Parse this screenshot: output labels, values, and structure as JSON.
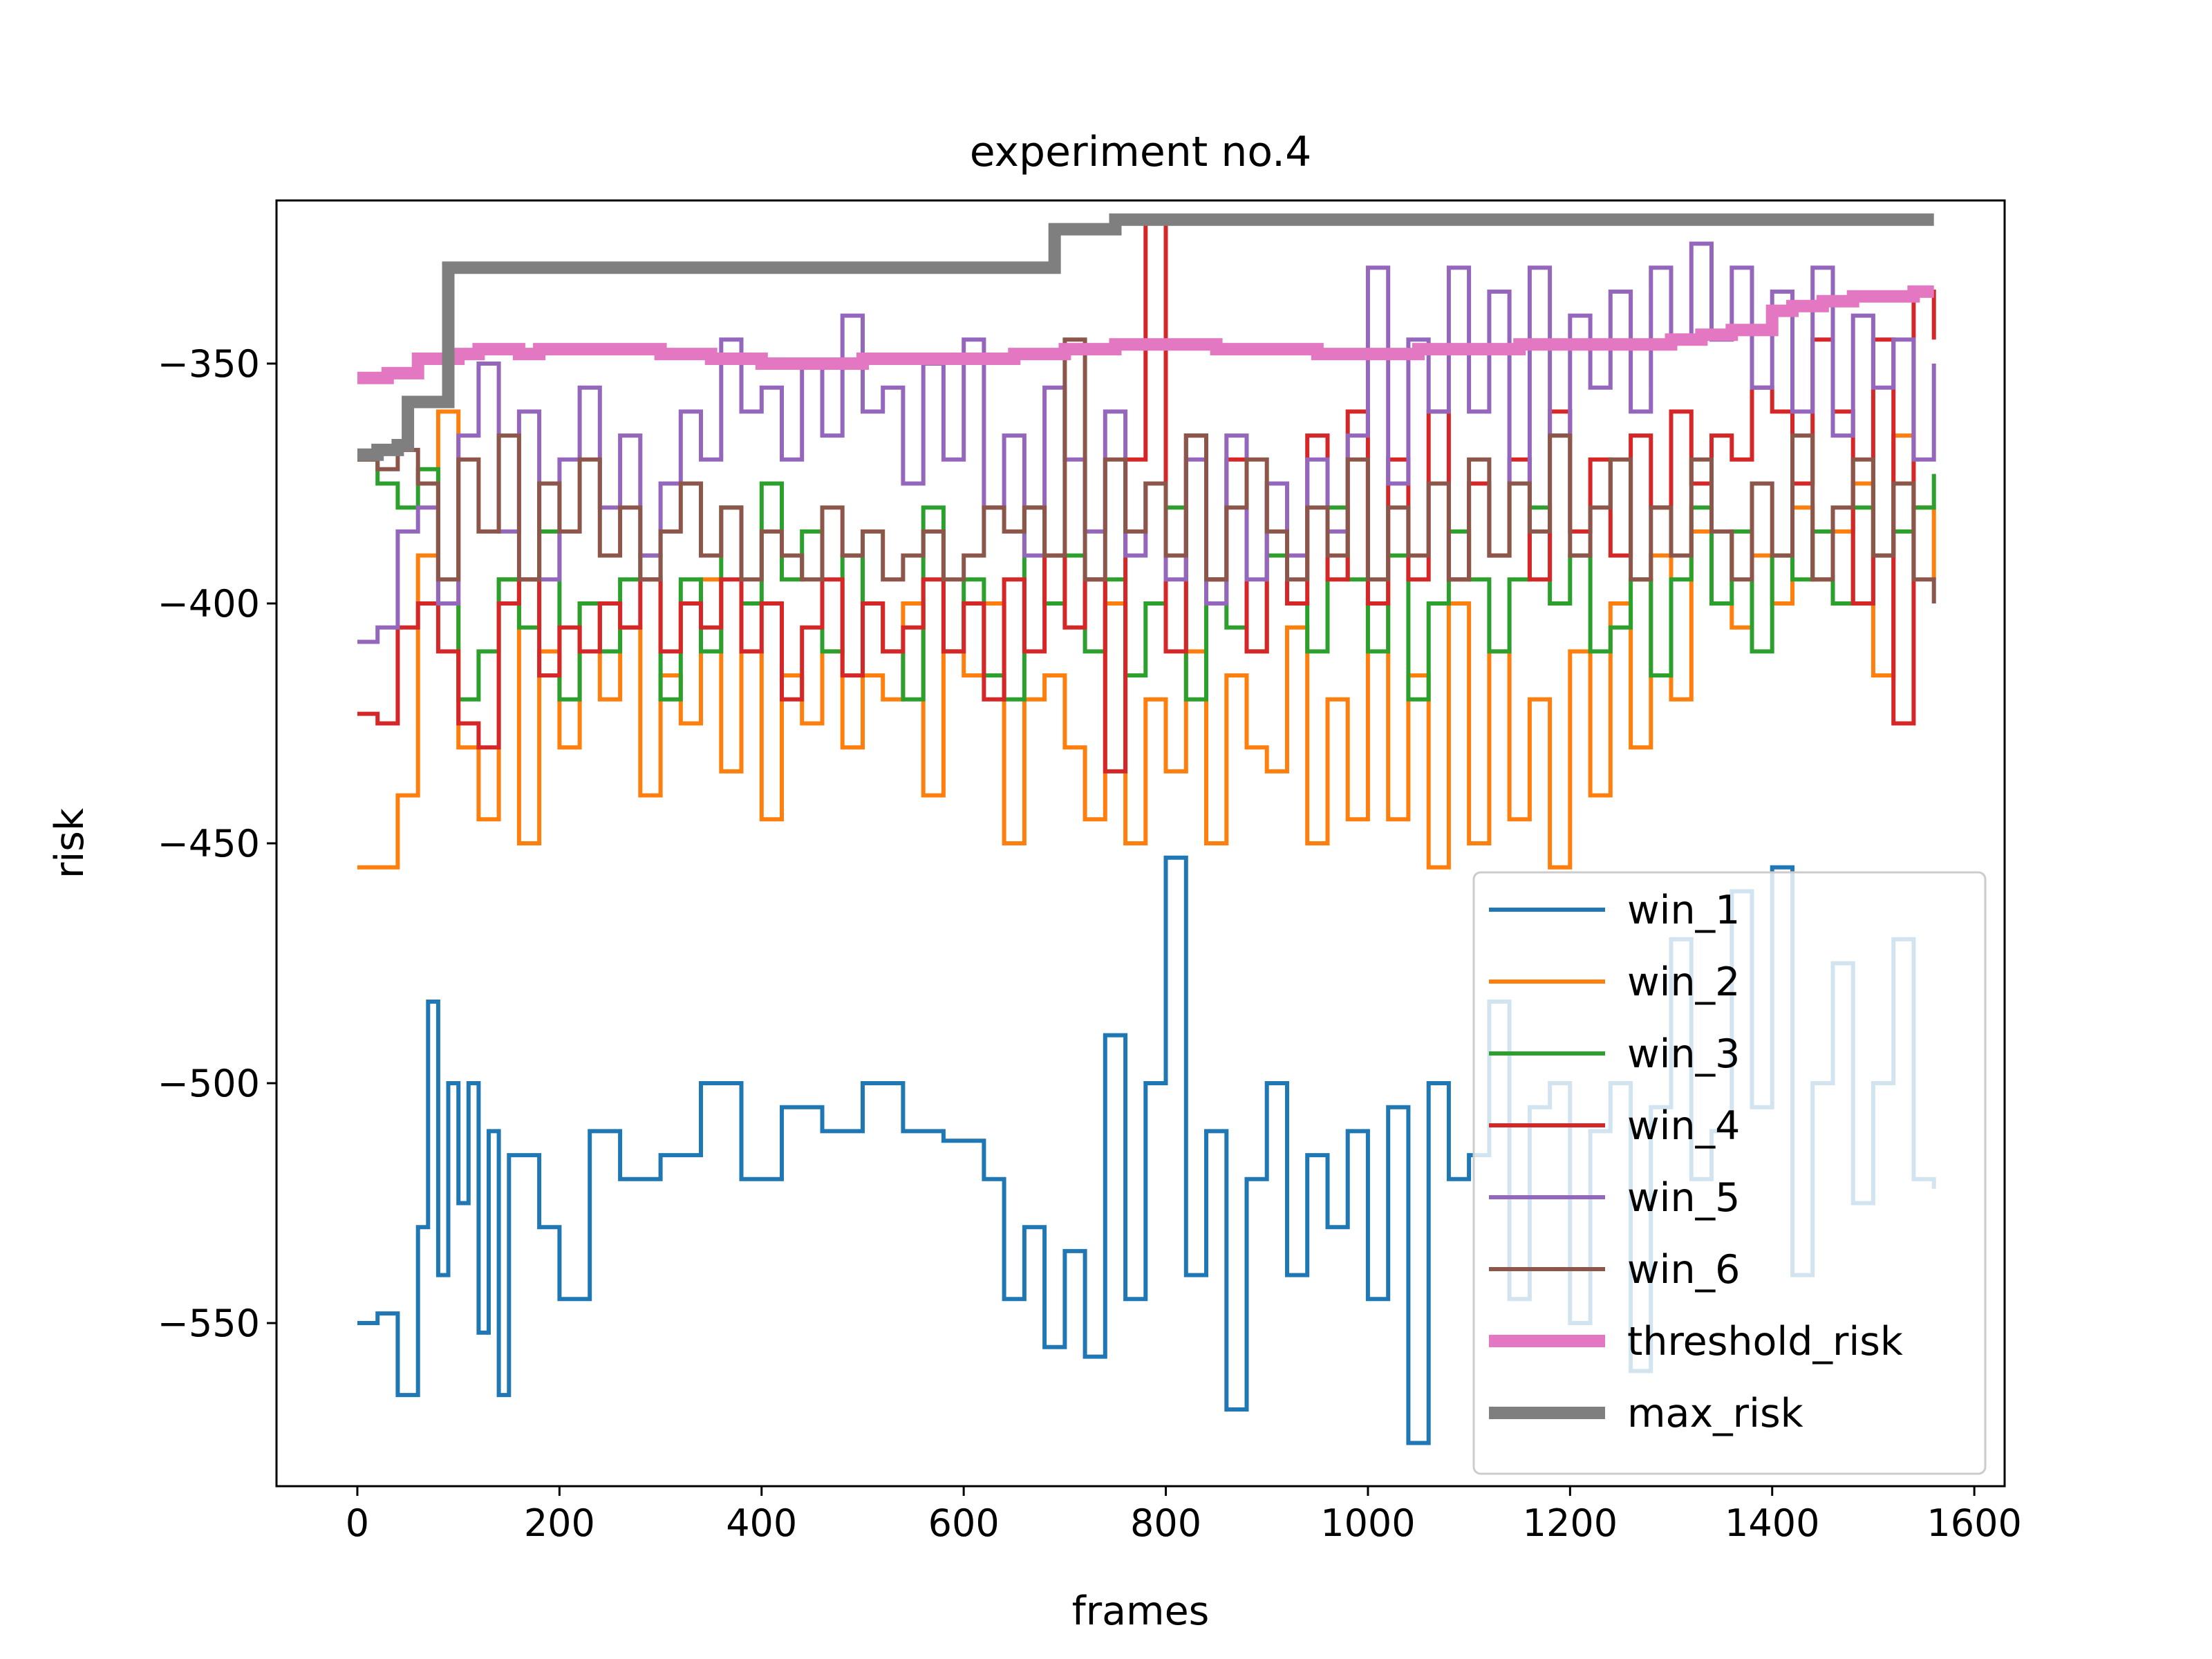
{
  "chart_data": {
    "type": "line",
    "title": "experiment no.4",
    "xlabel": "frames",
    "ylabel": "risk",
    "xlim": [
      -80,
      1630
    ],
    "ylim": [
      -584,
      -316
    ],
    "xticks": [
      0,
      200,
      400,
      600,
      800,
      1000,
      1200,
      1400,
      1600
    ],
    "xtick_labels": [
      "0",
      "200",
      "400",
      "600",
      "800",
      "1000",
      "1200",
      "1400",
      "1600"
    ],
    "yticks": [
      -350,
      -400,
      -450,
      -500,
      -550
    ],
    "ytick_labels": [
      "−350",
      "−400",
      "−450",
      "−500",
      "−550"
    ],
    "grid": false,
    "legend_position": "lower-right",
    "series": [
      {
        "name": "win_1",
        "color": "#1f77b4",
        "width": 6,
        "x": [
          0,
          20,
          40,
          60,
          70,
          80,
          90,
          100,
          110,
          120,
          130,
          140,
          150,
          180,
          200,
          230,
          260,
          300,
          340,
          380,
          420,
          460,
          500,
          540,
          580,
          620,
          640,
          660,
          680,
          700,
          720,
          740,
          760,
          780,
          800,
          820,
          840,
          860,
          880,
          900,
          920,
          940,
          960,
          980,
          1000,
          1020,
          1040,
          1060,
          1080,
          1100,
          1120,
          1140,
          1160,
          1180,
          1200,
          1220,
          1240,
          1260,
          1280,
          1300,
          1320,
          1340,
          1360,
          1380,
          1400,
          1420,
          1440,
          1460,
          1480,
          1500,
          1520,
          1540,
          1560
        ],
        "values": [
          -550,
          -548,
          -565,
          -530,
          -483,
          -540,
          -500,
          -525,
          -500,
          -552,
          -510,
          -565,
          -515,
          -530,
          -545,
          -510,
          -520,
          -515,
          -500,
          -520,
          -505,
          -510,
          -500,
          -510,
          -512,
          -520,
          -545,
          -530,
          -555,
          -535,
          -557,
          -490,
          -545,
          -500,
          -453,
          -540,
          -510,
          -568,
          -520,
          -500,
          -540,
          -515,
          -530,
          -510,
          -545,
          -505,
          -575,
          -500,
          -520,
          -515,
          -483,
          -545,
          -505,
          -500,
          -550,
          -510,
          -500,
          -560,
          -505,
          -470,
          -520,
          -510,
          -460,
          -505,
          -455,
          -540,
          -500,
          -475,
          -525,
          -500,
          -470,
          -520,
          -522
        ]
      },
      {
        "name": "win_2",
        "color": "#ff7f0e",
        "width": 6,
        "x": [
          0,
          20,
          40,
          60,
          80,
          100,
          120,
          140,
          160,
          180,
          200,
          220,
          240,
          260,
          280,
          300,
          320,
          340,
          360,
          380,
          400,
          420,
          440,
          460,
          480,
          500,
          520,
          540,
          560,
          580,
          600,
          620,
          640,
          660,
          680,
          700,
          720,
          740,
          760,
          780,
          800,
          820,
          840,
          860,
          880,
          900,
          920,
          940,
          960,
          980,
          1000,
          1020,
          1040,
          1060,
          1080,
          1100,
          1120,
          1140,
          1160,
          1180,
          1200,
          1220,
          1240,
          1260,
          1280,
          1300,
          1320,
          1340,
          1360,
          1380,
          1400,
          1420,
          1440,
          1460,
          1480,
          1500,
          1520,
          1540,
          1560
        ],
        "values": [
          -455,
          -455,
          -440,
          -390,
          -360,
          -430,
          -445,
          -395,
          -450,
          -410,
          -430,
          -400,
          -420,
          -405,
          -440,
          -415,
          -425,
          -395,
          -435,
          -410,
          -445,
          -415,
          -425,
          -410,
          -430,
          -415,
          -420,
          -400,
          -440,
          -410,
          -415,
          -400,
          -450,
          -420,
          -415,
          -430,
          -445,
          -400,
          -450,
          -420,
          -435,
          -410,
          -450,
          -415,
          -430,
          -435,
          -405,
          -450,
          -420,
          -445,
          -400,
          -445,
          -415,
          -455,
          -400,
          -450,
          -410,
          -445,
          -420,
          -455,
          -410,
          -440,
          -400,
          -430,
          -390,
          -420,
          -385,
          -400,
          -405,
          -390,
          -400,
          -380,
          -395,
          -385,
          -375,
          -415,
          -365,
          -380,
          -395
        ]
      },
      {
        "name": "win_3",
        "color": "#2ca02c",
        "width": 6,
        "x": [
          0,
          20,
          40,
          60,
          80,
          100,
          120,
          140,
          160,
          180,
          200,
          220,
          240,
          260,
          280,
          300,
          320,
          340,
          360,
          380,
          400,
          420,
          440,
          460,
          480,
          500,
          520,
          540,
          560,
          580,
          600,
          620,
          640,
          660,
          680,
          700,
          720,
          740,
          760,
          780,
          800,
          820,
          840,
          860,
          880,
          900,
          920,
          940,
          960,
          980,
          1000,
          1020,
          1040,
          1060,
          1080,
          1100,
          1120,
          1140,
          1160,
          1180,
          1200,
          1220,
          1240,
          1260,
          1280,
          1300,
          1320,
          1340,
          1360,
          1380,
          1400,
          1420,
          1440,
          1460,
          1480,
          1500,
          1520,
          1540,
          1560
        ],
        "values": [
          -370,
          -375,
          -380,
          -372,
          -400,
          -420,
          -410,
          -395,
          -405,
          -385,
          -420,
          -400,
          -410,
          -395,
          -390,
          -420,
          -395,
          -410,
          -380,
          -400,
          -375,
          -395,
          -385,
          -410,
          -390,
          -400,
          -410,
          -420,
          -380,
          -410,
          -395,
          -415,
          -420,
          -380,
          -400,
          -390,
          -410,
          -395,
          -415,
          -400,
          -380,
          -420,
          -395,
          -405,
          -410,
          -390,
          -400,
          -410,
          -380,
          -395,
          -410,
          -390,
          -420,
          -400,
          -385,
          -395,
          -410,
          -395,
          -380,
          -400,
          -390,
          -410,
          -405,
          -395,
          -415,
          -395,
          -380,
          -400,
          -385,
          -410,
          -390,
          -395,
          -385,
          -400,
          -380,
          -390,
          -385,
          -380,
          -373
        ]
      },
      {
        "name": "win_4",
        "color": "#d62728",
        "width": 6,
        "x": [
          0,
          20,
          40,
          60,
          80,
          100,
          120,
          140,
          160,
          180,
          200,
          220,
          240,
          260,
          280,
          300,
          320,
          340,
          360,
          380,
          400,
          420,
          440,
          460,
          480,
          500,
          520,
          540,
          560,
          580,
          600,
          620,
          640,
          660,
          680,
          700,
          720,
          740,
          760,
          780,
          800,
          820,
          840,
          860,
          880,
          900,
          920,
          940,
          960,
          980,
          1000,
          1020,
          1040,
          1060,
          1080,
          1100,
          1120,
          1140,
          1160,
          1180,
          1200,
          1220,
          1240,
          1260,
          1280,
          1300,
          1320,
          1340,
          1360,
          1380,
          1400,
          1420,
          1440,
          1460,
          1480,
          1500,
          1520,
          1540,
          1560
        ],
        "values": [
          -423,
          -425,
          -405,
          -400,
          -410,
          -425,
          -430,
          -400,
          -395,
          -415,
          -405,
          -410,
          -400,
          -405,
          -395,
          -410,
          -400,
          -405,
          -395,
          -410,
          -400,
          -420,
          -405,
          -395,
          -415,
          -400,
          -410,
          -405,
          -395,
          -410,
          -400,
          -420,
          -395,
          -410,
          -390,
          -405,
          -395,
          -435,
          -370,
          -320,
          -410,
          -365,
          -395,
          -370,
          -410,
          -375,
          -400,
          -365,
          -395,
          -360,
          -400,
          -370,
          -395,
          -360,
          -395,
          -375,
          -390,
          -370,
          -395,
          -360,
          -385,
          -370,
          -390,
          -365,
          -380,
          -360,
          -375,
          -365,
          -370,
          -355,
          -360,
          -375,
          -345,
          -360,
          -400,
          -345,
          -425,
          -335,
          -345
        ]
      },
      {
        "name": "win_5",
        "color": "#9467bd",
        "width": 6,
        "x": [
          0,
          20,
          40,
          60,
          80,
          100,
          120,
          140,
          160,
          180,
          200,
          220,
          240,
          260,
          280,
          300,
          320,
          340,
          360,
          380,
          400,
          420,
          440,
          460,
          480,
          500,
          520,
          540,
          560,
          580,
          600,
          620,
          640,
          660,
          680,
          700,
          720,
          740,
          760,
          780,
          800,
          820,
          840,
          860,
          880,
          900,
          920,
          940,
          960,
          980,
          1000,
          1020,
          1040,
          1060,
          1080,
          1100,
          1120,
          1140,
          1160,
          1180,
          1200,
          1220,
          1240,
          1260,
          1280,
          1300,
          1320,
          1340,
          1360,
          1380,
          1400,
          1420,
          1440,
          1460,
          1480,
          1500,
          1520,
          1540,
          1560
        ],
        "values": [
          -408,
          -405,
          -385,
          -380,
          -400,
          -365,
          -350,
          -385,
          -360,
          -395,
          -370,
          -355,
          -380,
          -365,
          -390,
          -375,
          -360,
          -370,
          -345,
          -360,
          -355,
          -370,
          -350,
          -365,
          -340,
          -360,
          -355,
          -375,
          -350,
          -370,
          -345,
          -380,
          -365,
          -390,
          -355,
          -370,
          -385,
          -360,
          -390,
          -375,
          -395,
          -370,
          -400,
          -365,
          -395,
          -375,
          -390,
          -370,
          -385,
          -365,
          -330,
          -375,
          -345,
          -360,
          -330,
          -360,
          -335,
          -375,
          -330,
          -365,
          -340,
          -355,
          -335,
          -360,
          -330,
          -345,
          -325,
          -345,
          -330,
          -355,
          -335,
          -360,
          -330,
          -365,
          -340,
          -355,
          -345,
          -370,
          -350
        ]
      },
      {
        "name": "win_6",
        "color": "#8c564b",
        "width": 6,
        "x": [
          0,
          20,
          40,
          60,
          80,
          100,
          120,
          140,
          160,
          180,
          200,
          220,
          240,
          260,
          280,
          300,
          320,
          340,
          360,
          380,
          400,
          420,
          440,
          460,
          480,
          500,
          520,
          540,
          560,
          580,
          600,
          620,
          640,
          660,
          680,
          700,
          720,
          740,
          760,
          780,
          800,
          820,
          840,
          860,
          880,
          900,
          920,
          940,
          960,
          980,
          1000,
          1020,
          1040,
          1060,
          1080,
          1100,
          1120,
          1140,
          1160,
          1180,
          1200,
          1220,
          1240,
          1260,
          1280,
          1300,
          1320,
          1340,
          1360,
          1380,
          1400,
          1420,
          1440,
          1460,
          1480,
          1500,
          1520,
          1540,
          1560
        ],
        "values": [
          -370,
          -372,
          -368,
          -375,
          -395,
          -370,
          -385,
          -365,
          -395,
          -375,
          -385,
          -370,
          -390,
          -380,
          -395,
          -385,
          -375,
          -390,
          -380,
          -395,
          -385,
          -390,
          -395,
          -380,
          -390,
          -385,
          -395,
          -390,
          -385,
          -395,
          -390,
          -380,
          -385,
          -380,
          -390,
          -345,
          -395,
          -370,
          -385,
          -375,
          -390,
          -365,
          -395,
          -380,
          -370,
          -385,
          -395,
          -380,
          -390,
          -370,
          -395,
          -380,
          -390,
          -375,
          -395,
          -370,
          -390,
          -375,
          -385,
          -365,
          -390,
          -380,
          -370,
          -395,
          -380,
          -390,
          -370,
          -385,
          -395,
          -375,
          -390,
          -365,
          -395,
          -380,
          -370,
          -390,
          -375,
          -395,
          -400
        ]
      },
      {
        "name": "threshold_risk",
        "color": "#e377c2",
        "width": 18,
        "x": [
          0,
          30,
          60,
          90,
          100,
          120,
          140,
          160,
          180,
          200,
          250,
          300,
          350,
          400,
          450,
          500,
          550,
          600,
          650,
          680,
          700,
          750,
          800,
          850,
          900,
          950,
          1000,
          1050,
          1100,
          1150,
          1200,
          1250,
          1300,
          1330,
          1360,
          1400,
          1420,
          1450,
          1480,
          1510,
          1540,
          1560
        ],
        "values": [
          -353,
          -352,
          -349,
          -349,
          -348,
          -347,
          -347,
          -348,
          -347,
          -347,
          -347,
          -348,
          -349,
          -350,
          -350,
          -349,
          -349,
          -349,
          -348,
          -348,
          -347,
          -346,
          -346,
          -347,
          -347,
          -348,
          -348,
          -347,
          -347,
          -346,
          -346,
          -346,
          -345,
          -344,
          -343,
          -339,
          -338,
          -337,
          -336,
          -336,
          -335,
          -335
        ]
      },
      {
        "name": "max_risk",
        "color": "#7f7f7f",
        "width": 18,
        "x": [
          0,
          20,
          40,
          45,
          50,
          70,
          75,
          80,
          90,
          95,
          100,
          300,
          600,
          670,
          675,
          680,
          690,
          700,
          720,
          740,
          750,
          760,
          1000,
          1300,
          1560
        ],
        "values": [
          -369,
          -368,
          -367,
          -367,
          -358,
          -358,
          -358,
          -358,
          -330,
          -330,
          -330,
          -330,
          -330,
          -330,
          -330,
          -330,
          -322,
          -322,
          -322,
          -322,
          -320,
          -320,
          -320,
          -320,
          -320
        ]
      }
    ]
  }
}
